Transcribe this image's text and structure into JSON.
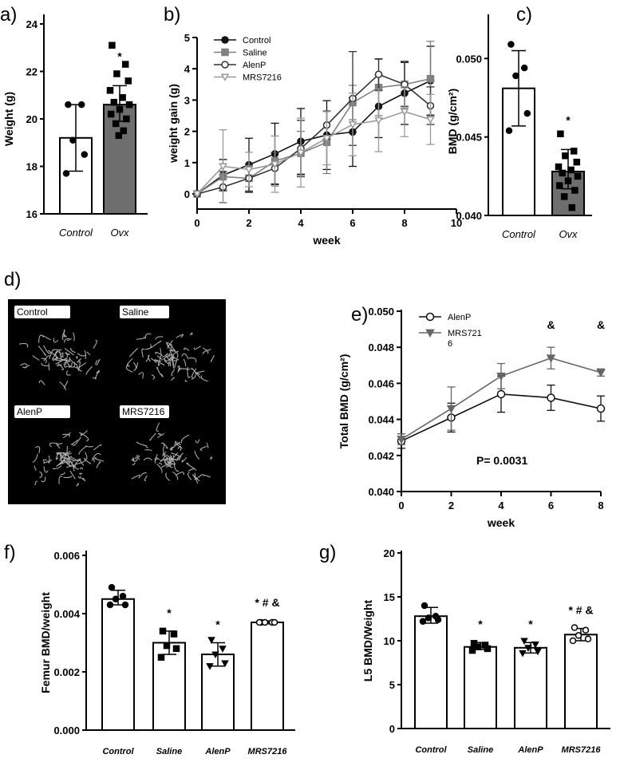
{
  "chart_data": [
    {
      "panel": "a)",
      "type": "bar",
      "ylabel": "Weight (g)",
      "ylim": [
        16,
        24
      ],
      "yticks": [
        16,
        18,
        20,
        22,
        24
      ],
      "categories": [
        "Control",
        "Ovx"
      ],
      "values": [
        19.2,
        20.6
      ],
      "err_low": [
        17.8,
        19.9
      ],
      "err_high": [
        20.6,
        21.4
      ],
      "bar_colors": [
        "#ffffff",
        "#6e6e6e"
      ],
      "points": [
        [
          20.6,
          20.6,
          19.1,
          18.5,
          17.7
        ],
        [
          23.1,
          22.3,
          21.9,
          21.6,
          21.2,
          20.9,
          20.7,
          20.6,
          20.4,
          20.2,
          20.0,
          19.8,
          19.5,
          19.3
        ]
      ],
      "annotations": [
        "",
        "*"
      ]
    },
    {
      "panel": "b)",
      "type": "line",
      "xlabel": "week",
      "ylabel": "weight gain (g)",
      "xlim": [
        0,
        10
      ],
      "ylim": [
        -0.5,
        5
      ],
      "xticks": [
        0,
        2,
        4,
        6,
        8,
        10
      ],
      "yticks": [
        0,
        1,
        2,
        3,
        4,
        5
      ],
      "legend": "top-left",
      "x": [
        0,
        1,
        2,
        3,
        4,
        5,
        6,
        7,
        8,
        9
      ],
      "series": [
        {
          "name": "Control",
          "color": "#111111",
          "marker": "filled-circle",
          "values": [
            0,
            0.6,
            0.93,
            1.28,
            1.68,
            1.88,
            1.98,
            2.8,
            3.22,
            3.62
          ],
          "sd": [
            0,
            0.5,
            0.85,
            0.98,
            1.05,
            1.1,
            1.1,
            1.0,
            1.0,
            1.1
          ]
        },
        {
          "name": "Saline",
          "color": "#808080",
          "marker": "filled-square",
          "values": [
            0,
            0.55,
            0.5,
            1.05,
            1.3,
            1.65,
            2.92,
            3.4,
            3.5,
            3.68
          ],
          "sd": [
            0,
            0.4,
            0.4,
            0.8,
            0.7,
            1.0,
            0.55,
            0.9,
            0.75,
            1.2
          ]
        },
        {
          "name": "AlenP",
          "color": "#333333",
          "marker": "open-circle",
          "values": [
            0,
            0.22,
            0.5,
            0.82,
            1.45,
            2.2,
            3.05,
            3.82,
            3.5,
            2.82
          ],
          "sd": [
            0,
            0.5,
            0.45,
            0.5,
            0.9,
            0.45,
            1.5,
            0.5,
            0.7,
            0.6
          ]
        },
        {
          "name": "MRS7216",
          "color": "#9a9a9a",
          "marker": "open-triangle-down",
          "values": [
            0,
            0.88,
            0.78,
            0.95,
            1.32,
            1.78,
            2.22,
            2.35,
            2.63,
            2.38
          ],
          "sd": [
            0,
            1.17,
            0.55,
            0.9,
            1.1,
            0.85,
            1.0,
            1.0,
            0.8,
            0.8
          ]
        }
      ]
    },
    {
      "panel": "c)",
      "type": "bar",
      "ylabel": "BMD (g/cm²)",
      "ylim": [
        0.04,
        0.052
      ],
      "yticks": [
        0.04,
        0.045,
        0.05
      ],
      "ytick_labels": [
        "0.040",
        "0.045",
        "0.050"
      ],
      "categories": [
        "Control",
        "Ovx"
      ],
      "values": [
        0.0481,
        0.0428
      ],
      "err_low": [
        0.0457,
        0.0417
      ],
      "err_high": [
        0.0505,
        0.0442
      ],
      "bar_colors": [
        "#ffffff",
        "#6e6e6e"
      ],
      "points": [
        [
          0.0509,
          0.0494,
          0.0489,
          0.0465,
          0.0454
        ],
        [
          0.0452,
          0.0441,
          0.0438,
          0.0434,
          0.0431,
          0.0429,
          0.0427,
          0.0425,
          0.0422,
          0.0419,
          0.0416,
          0.0412,
          0.0405
        ]
      ],
      "annotations": [
        "",
        "*"
      ]
    },
    {
      "panel": "e)",
      "type": "line",
      "xlabel": "week",
      "ylabel": "Total BMD (g/cm²)",
      "xlim": [
        0,
        8
      ],
      "ylim": [
        0.04,
        0.05
      ],
      "xticks": [
        0,
        2,
        4,
        6,
        8
      ],
      "yticks": [
        0.04,
        0.042,
        0.044,
        0.046,
        0.048,
        0.05
      ],
      "ytick_labels": [
        "0.040",
        "0.042",
        "0.044",
        "0.046",
        "0.048",
        "0.050"
      ],
      "legend": "top-left",
      "x": [
        0,
        2,
        4,
        6,
        8
      ],
      "series": [
        {
          "name": "AlenP",
          "color": "#111111",
          "marker": "open-circle",
          "values": [
            0.0428,
            0.0441,
            0.0454,
            0.0452,
            0.0446
          ],
          "sd": [
            0.0004,
            0.0008,
            0.001,
            0.0007,
            0.0007
          ]
        },
        {
          "name": "MRS721\n6",
          "color": "#666666",
          "marker": "filled-triangle-down",
          "values": [
            0.0429,
            0.0446,
            0.0464,
            0.0474,
            0.0466
          ],
          "sd": [
            0.0003,
            0.0012,
            0.0007,
            0.0006,
            0.0002
          ]
        }
      ],
      "annotations": [
        {
          "x": 6,
          "text": "&"
        },
        {
          "x": 8,
          "text": "&"
        }
      ],
      "stat_text": "P= 0.0031"
    },
    {
      "panel": "f)",
      "type": "bar",
      "ylabel": "Femur BMD/weight",
      "ylim": [
        0,
        0.006
      ],
      "yticks": [
        0,
        0.002,
        0.004,
        0.006
      ],
      "ytick_labels": [
        "0.000",
        "0.002",
        "0.004",
        "0.006"
      ],
      "categories": [
        "Control",
        "Saline",
        "AlenP",
        "MRS7216"
      ],
      "values": [
        0.0045,
        0.003,
        0.0026,
        0.0037
      ],
      "err_low": [
        0.0043,
        0.0026,
        0.0022,
        0.00365
      ],
      "err_high": [
        0.0048,
        0.0034,
        0.003,
        0.00375
      ],
      "markers": [
        "filled-circle",
        "filled-square",
        "filled-triangle-down",
        "open-circle"
      ],
      "points": [
        [
          0.0049,
          0.0046,
          0.0045,
          0.0043,
          0.0043
        ],
        [
          0.0034,
          0.0033,
          0.0029,
          0.0028,
          0.0025
        ],
        [
          0.0031,
          0.0028,
          0.0026,
          0.0023,
          0.0022
        ],
        [
          0.0037,
          0.0037,
          0.0037,
          0.0037,
          0.0037
        ]
      ],
      "annotations": [
        "",
        "*",
        "*",
        "* # &"
      ]
    },
    {
      "panel": "g)",
      "type": "bar",
      "ylabel": "L5 BMD/Weight",
      "ylim": [
        0,
        20
      ],
      "yticks": [
        0,
        5,
        10,
        15,
        20
      ],
      "ytick_labels": [
        "0",
        "5",
        "10",
        "15",
        "20"
      ],
      "categories": [
        "Control",
        "Saline",
        "AlenP",
        "MRS7216"
      ],
      "values": [
        12.8,
        9.3,
        9.2,
        10.7
      ],
      "err_low": [
        12.0,
        9.0,
        8.6,
        10.0
      ],
      "err_high": [
        13.8,
        9.8,
        9.8,
        11.4
      ],
      "markers": [
        "filled-circle",
        "filled-square",
        "filled-triangle-down",
        "open-circle"
      ],
      "points": [
        [
          14.0,
          12.8,
          12.6,
          12.4,
          12.2
        ],
        [
          9.7,
          9.5,
          9.3,
          9.1,
          8.9
        ],
        [
          10.0,
          9.6,
          9.2,
          8.8,
          8.6
        ],
        [
          11.5,
          11.2,
          10.6,
          10.2,
          10.0
        ]
      ],
      "annotations": [
        "",
        "*",
        "*",
        "* # &"
      ]
    }
  ],
  "panel_d": {
    "label": "d)",
    "image_labels": [
      "Control",
      "Saline",
      "AlenP",
      "MRS7216"
    ]
  }
}
